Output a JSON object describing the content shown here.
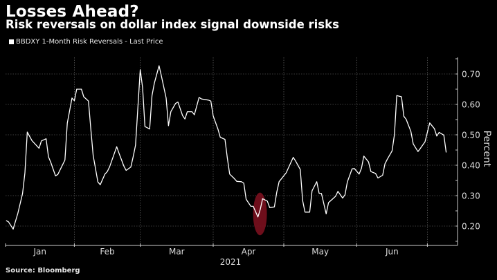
{
  "header": {
    "title": "Losses Ahead?",
    "subtitle": "Risk reversals on dollar index signal downside risks"
  },
  "footer": {
    "source": "Source: Bloomberg"
  },
  "chart_data": {
    "type": "line",
    "title": "Losses Ahead?",
    "subtitle": "Risk reversals on dollar index signal downside risks",
    "xlabel": "2021",
    "ylabel": "Percent",
    "ylim": [
      0.14,
      0.76
    ],
    "xlim": [
      "2021-01-01",
      "2021-07-12"
    ],
    "grid": true,
    "legend_position": "top-left",
    "y_axis_side": "right",
    "x_tick_labels": [
      "Jan",
      "Feb",
      "Mar",
      "Apr",
      "May",
      "Jun"
    ],
    "y_ticks": [
      0.2,
      0.3,
      0.4,
      0.5,
      0.6,
      0.7
    ],
    "y_tick_labels": [
      "0.20",
      "0.30",
      "0.40",
      "0.50",
      "0.60",
      "0.70"
    ],
    "colors": {
      "background": "#000000",
      "line": "#ffffff",
      "grid": "#777777",
      "highlight": "#7a0f1e"
    },
    "highlight": {
      "date": "2021-04-20",
      "range": [
        0.17,
        0.31
      ]
    },
    "series": [
      {
        "name": "BBDXY 1-Month Risk Reversals - Last Price",
        "points": [
          [
            "2021-01-03",
            0.218
          ],
          [
            "2021-01-04",
            0.214
          ],
          [
            "2021-01-06",
            0.19
          ],
          [
            "2021-01-08",
            0.242
          ],
          [
            "2021-01-10",
            0.307
          ],
          [
            "2021-01-11",
            0.375
          ],
          [
            "2021-01-12",
            0.509
          ],
          [
            "2021-01-14",
            0.481
          ],
          [
            "2021-01-17",
            0.456
          ],
          [
            "2021-01-18",
            0.48
          ],
          [
            "2021-01-20",
            0.487
          ],
          [
            "2021-01-21",
            0.428
          ],
          [
            "2021-01-22",
            0.409
          ],
          [
            "2021-01-24",
            0.365
          ],
          [
            "2021-01-25",
            0.37
          ],
          [
            "2021-01-28",
            0.417
          ],
          [
            "2021-01-29",
            0.538
          ],
          [
            "2021-01-31",
            0.621
          ],
          [
            "2021-02-01",
            0.612
          ],
          [
            "2021-02-02",
            0.65
          ],
          [
            "2021-02-04",
            0.65
          ],
          [
            "2021-02-05",
            0.625
          ],
          [
            "2021-02-07",
            0.611
          ],
          [
            "2021-02-08",
            0.519
          ],
          [
            "2021-02-09",
            0.432
          ],
          [
            "2021-02-11",
            0.345
          ],
          [
            "2021-02-12",
            0.336
          ],
          [
            "2021-02-14",
            0.371
          ],
          [
            "2021-02-15",
            0.379
          ],
          [
            "2021-02-16",
            0.395
          ],
          [
            "2021-02-19",
            0.461
          ],
          [
            "2021-02-20",
            0.439
          ],
          [
            "2021-02-22",
            0.398
          ],
          [
            "2021-02-23",
            0.383
          ],
          [
            "2021-02-25",
            0.394
          ],
          [
            "2021-02-26",
            0.428
          ],
          [
            "2021-02-27",
            0.466
          ],
          [
            "2021-03-01",
            0.714
          ],
          [
            "2021-03-02",
            0.655
          ],
          [
            "2021-03-03",
            0.527
          ],
          [
            "2021-03-05",
            0.519
          ],
          [
            "2021-03-06",
            0.629
          ],
          [
            "2021-03-07",
            0.67
          ],
          [
            "2021-03-09",
            0.727
          ],
          [
            "2021-03-10",
            0.693
          ],
          [
            "2021-03-12",
            0.621
          ],
          [
            "2021-03-13",
            0.53
          ],
          [
            "2021-03-14",
            0.576
          ],
          [
            "2021-03-16",
            0.603
          ],
          [
            "2021-03-17",
            0.608
          ],
          [
            "2021-03-19",
            0.563
          ],
          [
            "2021-03-20",
            0.552
          ],
          [
            "2021-03-21",
            0.576
          ],
          [
            "2021-03-23",
            0.576
          ],
          [
            "2021-03-24",
            0.566
          ],
          [
            "2021-03-26",
            0.623
          ],
          [
            "2021-03-27",
            0.618
          ],
          [
            "2021-03-30",
            0.614
          ],
          [
            "2021-03-31",
            0.611
          ],
          [
            "2021-04-01",
            0.562
          ],
          [
            "2021-04-03",
            0.519
          ],
          [
            "2021-04-04",
            0.492
          ],
          [
            "2021-04-06",
            0.485
          ],
          [
            "2021-04-07",
            0.424
          ],
          [
            "2021-04-08",
            0.371
          ],
          [
            "2021-04-10",
            0.356
          ],
          [
            "2021-04-11",
            0.347
          ],
          [
            "2021-04-13",
            0.346
          ],
          [
            "2021-04-14",
            0.341
          ],
          [
            "2021-04-15",
            0.288
          ],
          [
            "2021-04-17",
            0.265
          ],
          [
            "2021-04-18",
            0.265
          ],
          [
            "2021-04-20",
            0.23
          ],
          [
            "2021-04-21",
            0.255
          ],
          [
            "2021-04-22",
            0.29
          ],
          [
            "2021-04-24",
            0.282
          ],
          [
            "2021-04-25",
            0.261
          ],
          [
            "2021-04-27",
            0.263
          ],
          [
            "2021-04-28",
            0.311
          ],
          [
            "2021-04-29",
            0.346
          ],
          [
            "2021-05-02",
            0.375
          ],
          [
            "2021-05-05",
            0.426
          ],
          [
            "2021-05-06",
            0.414
          ],
          [
            "2021-05-08",
            0.386
          ],
          [
            "2021-05-09",
            0.284
          ],
          [
            "2021-05-10",
            0.246
          ],
          [
            "2021-05-12",
            0.246
          ],
          [
            "2021-05-13",
            0.316
          ],
          [
            "2021-05-15",
            0.346
          ],
          [
            "2021-05-16",
            0.308
          ],
          [
            "2021-05-17",
            0.307
          ],
          [
            "2021-05-19",
            0.24
          ],
          [
            "2021-05-20",
            0.277
          ],
          [
            "2021-05-23",
            0.298
          ],
          [
            "2021-05-24",
            0.314
          ],
          [
            "2021-05-26",
            0.292
          ],
          [
            "2021-05-27",
            0.303
          ],
          [
            "2021-05-28",
            0.345
          ],
          [
            "2021-05-30",
            0.388
          ],
          [
            "2021-05-31",
            0.389
          ],
          [
            "2021-06-02",
            0.371
          ],
          [
            "2021-06-03",
            0.39
          ],
          [
            "2021-06-04",
            0.43
          ],
          [
            "2021-06-06",
            0.411
          ],
          [
            "2021-06-07",
            0.379
          ],
          [
            "2021-06-09",
            0.373
          ],
          [
            "2021-06-10",
            0.358
          ],
          [
            "2021-06-12",
            0.367
          ],
          [
            "2021-06-13",
            0.405
          ],
          [
            "2021-06-14",
            0.42
          ],
          [
            "2021-06-16",
            0.447
          ],
          [
            "2021-06-17",
            0.5
          ],
          [
            "2021-06-18",
            0.629
          ],
          [
            "2021-06-20",
            0.625
          ],
          [
            "2021-06-21",
            0.561
          ],
          [
            "2021-06-22",
            0.551
          ],
          [
            "2021-06-24",
            0.511
          ],
          [
            "2021-06-25",
            0.47
          ],
          [
            "2021-06-27",
            0.445
          ],
          [
            "2021-06-28",
            0.455
          ],
          [
            "2021-06-30",
            0.477
          ],
          [
            "2021-07-02",
            0.539
          ],
          [
            "2021-07-04",
            0.52
          ],
          [
            "2021-07-05",
            0.496
          ],
          [
            "2021-07-06",
            0.508
          ],
          [
            "2021-07-08",
            0.499
          ],
          [
            "2021-07-09",
            0.442
          ]
        ]
      }
    ]
  }
}
